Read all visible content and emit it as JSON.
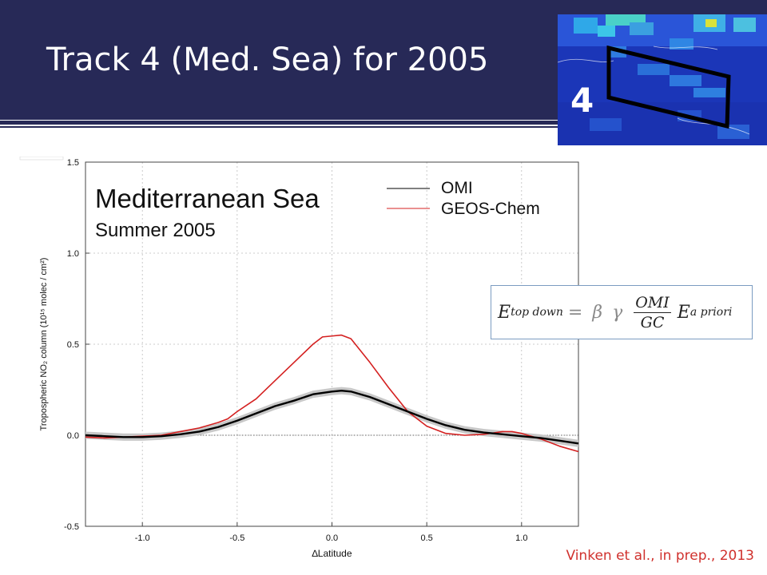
{
  "slide": {
    "title": "Track 4 (Med. Sea) for 2005",
    "citation": "Vinken et al., in prep., 2013"
  },
  "map_inset": {
    "track_number": "4"
  },
  "equation": {
    "lhs_symbol": "E",
    "lhs_subscript": "top down",
    "equals": "=",
    "beta": "β",
    "gamma": "γ",
    "numerator": "OMI",
    "denominator": "GC",
    "rhs_symbol": "E",
    "rhs_subscript": "a priori"
  },
  "colors": {
    "banner": "#272957",
    "omi": "#000000",
    "geos_chem": "#d42020",
    "omi_band": "#c8c8c8",
    "citation": "#d0312d",
    "equation_border": "#7b9cc1"
  },
  "chart_data": {
    "type": "line",
    "title": "Mediterranean Sea",
    "subtitle": "Summer 2005",
    "xlabel": "∆Latitude",
    "ylabel": "Tropospheric NO₂ column (10¹⁵ molec / cm²)",
    "xlim": [
      -1.3,
      1.3
    ],
    "ylim": [
      -0.5,
      1.5
    ],
    "xticks": [
      -1.0,
      -0.5,
      0.0,
      0.5,
      1.0
    ],
    "xtick_labels": [
      "-1.0",
      "-0.5",
      "0.0",
      "0.5",
      "1.0"
    ],
    "yticks": [
      -0.5,
      0.0,
      0.5,
      1.0,
      1.5
    ],
    "ytick_labels": [
      "-0.5",
      "0.0",
      "0.5",
      "1.0",
      "1.5"
    ],
    "zero_line": true,
    "legend_position": "top-right",
    "series": [
      {
        "name": "OMI",
        "color": "#000000",
        "band": 0.02,
        "x": [
          -1.3,
          -1.2,
          -1.1,
          -1.0,
          -0.9,
          -0.8,
          -0.7,
          -0.6,
          -0.5,
          -0.4,
          -0.3,
          -0.2,
          -0.1,
          0.0,
          0.05,
          0.1,
          0.2,
          0.3,
          0.4,
          0.5,
          0.6,
          0.7,
          0.8,
          0.9,
          1.0,
          1.1,
          1.2,
          1.3
        ],
        "y": [
          0.0,
          -0.005,
          -0.01,
          -0.01,
          -0.005,
          0.005,
          0.02,
          0.045,
          0.08,
          0.12,
          0.16,
          0.19,
          0.225,
          0.24,
          0.245,
          0.24,
          0.21,
          0.17,
          0.13,
          0.09,
          0.055,
          0.03,
          0.015,
          0.005,
          -0.005,
          -0.015,
          -0.03,
          -0.045
        ]
      },
      {
        "name": "GEOS-Chem",
        "color": "#d42020",
        "x": [
          -1.3,
          -1.2,
          -1.1,
          -1.0,
          -0.9,
          -0.8,
          -0.7,
          -0.6,
          -0.55,
          -0.5,
          -0.4,
          -0.3,
          -0.2,
          -0.1,
          -0.05,
          0.0,
          0.05,
          0.1,
          0.2,
          0.3,
          0.4,
          0.5,
          0.6,
          0.7,
          0.8,
          0.9,
          0.95,
          1.0,
          1.1,
          1.2,
          1.3
        ],
        "y": [
          -0.01,
          -0.015,
          -0.01,
          -0.005,
          0.0,
          0.02,
          0.04,
          0.07,
          0.09,
          0.13,
          0.2,
          0.3,
          0.4,
          0.5,
          0.54,
          0.545,
          0.55,
          0.53,
          0.4,
          0.26,
          0.13,
          0.05,
          0.01,
          0.0,
          0.005,
          0.02,
          0.02,
          0.01,
          -0.02,
          -0.06,
          -0.09
        ]
      }
    ]
  }
}
